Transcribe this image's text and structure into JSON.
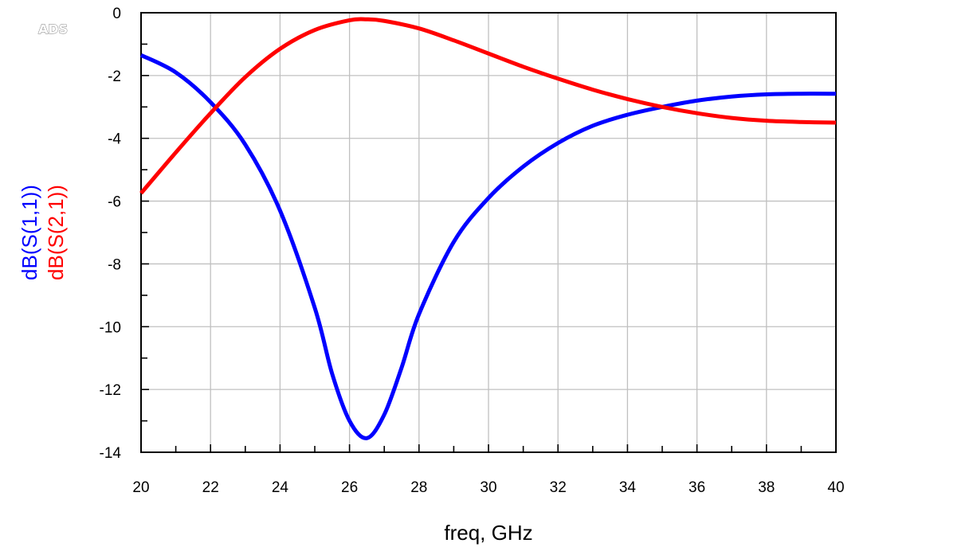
{
  "watermark": "ADS",
  "chart_data": {
    "type": "line",
    "xlabel": "freq, GHz",
    "xlim": [
      20,
      40
    ],
    "ylim": [
      -14,
      0
    ],
    "xticks": [
      "20",
      "22",
      "24",
      "26",
      "28",
      "30",
      "32",
      "34",
      "36",
      "38",
      "40"
    ],
    "yticks": [
      "0",
      "-2",
      "-4",
      "-6",
      "-8",
      "-10",
      "-12",
      "-14"
    ],
    "grid": true,
    "series": [
      {
        "name": "dB(S(1,1))",
        "color": "#0000ff",
        "x": [
          20,
          21,
          22,
          23,
          24,
          25,
          25.5,
          26,
          26.5,
          27,
          27.5,
          28,
          29,
          30,
          31,
          32,
          33,
          34,
          35,
          36,
          37,
          38,
          39,
          40
        ],
        "y": [
          -1.35,
          -1.9,
          -2.85,
          -4.2,
          -6.3,
          -9.4,
          -11.5,
          -13.0,
          -13.55,
          -12.8,
          -11.3,
          -9.6,
          -7.3,
          -5.9,
          -4.9,
          -4.15,
          -3.6,
          -3.25,
          -3.0,
          -2.8,
          -2.67,
          -2.6,
          -2.58,
          -2.58
        ]
      },
      {
        "name": "dB(S(2,1))",
        "color": "#ff0000",
        "x": [
          20,
          21,
          22,
          23,
          24,
          25,
          26,
          26.5,
          27,
          28,
          29,
          30,
          31,
          32,
          33,
          34,
          35,
          36,
          37,
          38,
          39,
          40
        ],
        "y": [
          -5.75,
          -4.45,
          -3.2,
          -2.05,
          -1.15,
          -0.55,
          -0.24,
          -0.21,
          -0.26,
          -0.5,
          -0.88,
          -1.3,
          -1.72,
          -2.1,
          -2.45,
          -2.75,
          -3.0,
          -3.2,
          -3.35,
          -3.44,
          -3.48,
          -3.5
        ]
      }
    ]
  }
}
